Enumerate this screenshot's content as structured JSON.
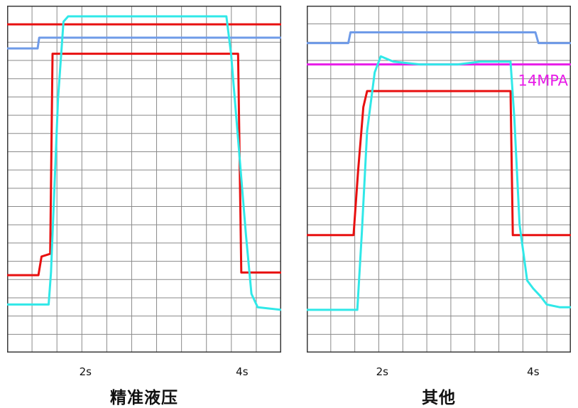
{
  "chart_data": [
    {
      "type": "line",
      "caption": "精准液压",
      "x_ticks": [
        {
          "label": "2s",
          "x": 2
        },
        {
          "label": "4s",
          "x": 4
        }
      ],
      "xlim": [
        1.0,
        4.5
      ],
      "ylim": [
        0,
        13
      ],
      "grid": true,
      "annotation": "",
      "series": [
        {
          "color": "#e81010",
          "points": [
            [
              1.0,
              12.3
            ],
            [
              4.5,
              12.3
            ]
          ]
        },
        {
          "color": "#6f9be8",
          "points": [
            [
              1.0,
              11.4
            ],
            [
              1.39,
              11.4
            ],
            [
              1.41,
              11.8
            ],
            [
              4.5,
              11.8
            ]
          ]
        },
        {
          "color": "#e81010",
          "points": [
            [
              1.0,
              2.9
            ],
            [
              1.4,
              2.9
            ],
            [
              1.44,
              3.6
            ],
            [
              1.55,
              3.7
            ],
            [
              1.58,
              11.2
            ],
            [
              3.95,
              11.2
            ],
            [
              3.99,
              3.0
            ],
            [
              4.5,
              3.0
            ]
          ]
        },
        {
          "color": "#30e8e8",
          "points": [
            [
              1.0,
              1.8
            ],
            [
              1.53,
              1.8
            ],
            [
              1.56,
              3.0
            ],
            [
              1.65,
              9.5
            ],
            [
              1.72,
              12.4
            ],
            [
              1.78,
              12.6
            ],
            [
              3.8,
              12.6
            ],
            [
              3.86,
              11.2
            ],
            [
              3.95,
              8.0
            ],
            [
              4.05,
              4.4
            ],
            [
              4.12,
              2.2
            ],
            [
              4.2,
              1.7
            ],
            [
              4.5,
              1.6
            ]
          ]
        }
      ]
    },
    {
      "type": "line",
      "caption": "其他",
      "x_ticks": [
        {
          "label": "2s",
          "x": 2
        },
        {
          "label": "4s",
          "x": 4
        }
      ],
      "xlim": [
        1.0,
        4.5
      ],
      "ylim": [
        0,
        13
      ],
      "grid": true,
      "annotation": "14MPA",
      "series": [
        {
          "color": "#e81ce8",
          "points": [
            [
              1.0,
              10.8
            ],
            [
              4.5,
              10.8
            ]
          ]
        },
        {
          "color": "#6f9be8",
          "points": [
            [
              1.0,
              11.6
            ],
            [
              1.55,
              11.6
            ],
            [
              1.58,
              12.0
            ],
            [
              4.03,
              12.0
            ],
            [
              4.07,
              11.6
            ],
            [
              4.5,
              11.6
            ]
          ]
        },
        {
          "color": "#e81010",
          "points": [
            [
              1.0,
              4.4
            ],
            [
              1.62,
              4.4
            ],
            [
              1.68,
              6.8
            ],
            [
              1.75,
              9.2
            ],
            [
              1.8,
              9.8
            ],
            [
              3.7,
              9.8
            ],
            [
              3.73,
              4.4
            ],
            [
              4.5,
              4.4
            ]
          ]
        },
        {
          "color": "#30e8e8",
          "points": [
            [
              1.0,
              1.6
            ],
            [
              1.67,
              1.6
            ],
            [
              1.73,
              4.5
            ],
            [
              1.8,
              8.3
            ],
            [
              1.9,
              10.5
            ],
            [
              1.98,
              11.1
            ],
            [
              2.15,
              10.9
            ],
            [
              2.5,
              10.8
            ],
            [
              3.0,
              10.8
            ],
            [
              3.3,
              10.9
            ],
            [
              3.55,
              10.9
            ],
            [
              3.7,
              10.9
            ],
            [
              3.75,
              8.8
            ],
            [
              3.82,
              4.8
            ],
            [
              3.92,
              2.7
            ],
            [
              4.0,
              2.4
            ],
            [
              4.1,
              2.1
            ],
            [
              4.18,
              1.8
            ],
            [
              4.35,
              1.7
            ],
            [
              4.5,
              1.7
            ]
          ]
        }
      ]
    }
  ]
}
